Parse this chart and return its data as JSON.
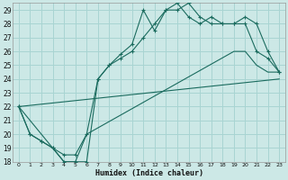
{
  "xlabel": "Humidex (Indice chaleur)",
  "xlim": [
    0,
    23
  ],
  "ylim": [
    18,
    29.5
  ],
  "yticks": [
    18,
    19,
    20,
    21,
    22,
    23,
    24,
    25,
    26,
    27,
    28,
    29
  ],
  "xticks": [
    0,
    1,
    2,
    3,
    4,
    5,
    6,
    7,
    8,
    9,
    10,
    11,
    12,
    13,
    14,
    15,
    16,
    17,
    18,
    19,
    20,
    21,
    22,
    23
  ],
  "bg_color": "#cce8e6",
  "line_color": "#1a6b5e",
  "grid_color": "#a8d4d2",
  "series": [
    {
      "x": [
        0,
        1,
        2,
        3,
        4,
        5,
        6,
        7,
        8,
        9,
        10,
        11,
        12,
        13,
        14,
        15,
        16,
        17,
        18,
        19,
        20,
        21,
        22,
        23
      ],
      "y": [
        22,
        20,
        19.5,
        19,
        18,
        18,
        18,
        24,
        25,
        25.8,
        26.5,
        29,
        27.5,
        29,
        29,
        29.5,
        28.5,
        28,
        28,
        28,
        28,
        26,
        25.5,
        24.5
      ],
      "marker": true
    },
    {
      "x": [
        0,
        1,
        2,
        3,
        4,
        5,
        6,
        7,
        8,
        9,
        10,
        11,
        12,
        13,
        14,
        15,
        16,
        17,
        18,
        19,
        20,
        21,
        22,
        23
      ],
      "y": [
        22,
        20,
        19.5,
        19,
        18.5,
        18.5,
        20,
        24,
        25,
        25.5,
        26,
        27,
        28,
        29,
        29.5,
        28.5,
        28,
        28.5,
        28,
        28,
        28.5,
        28,
        26,
        24.5
      ],
      "marker": true
    },
    {
      "x": [
        0,
        23
      ],
      "y": [
        22,
        24
      ],
      "marker": false
    },
    {
      "x": [
        0,
        3,
        4,
        5,
        6,
        19,
        20,
        21,
        22,
        23
      ],
      "y": [
        22,
        19,
        18,
        18,
        20,
        26,
        26,
        25,
        24.5,
        24.5
      ],
      "marker": false
    }
  ]
}
